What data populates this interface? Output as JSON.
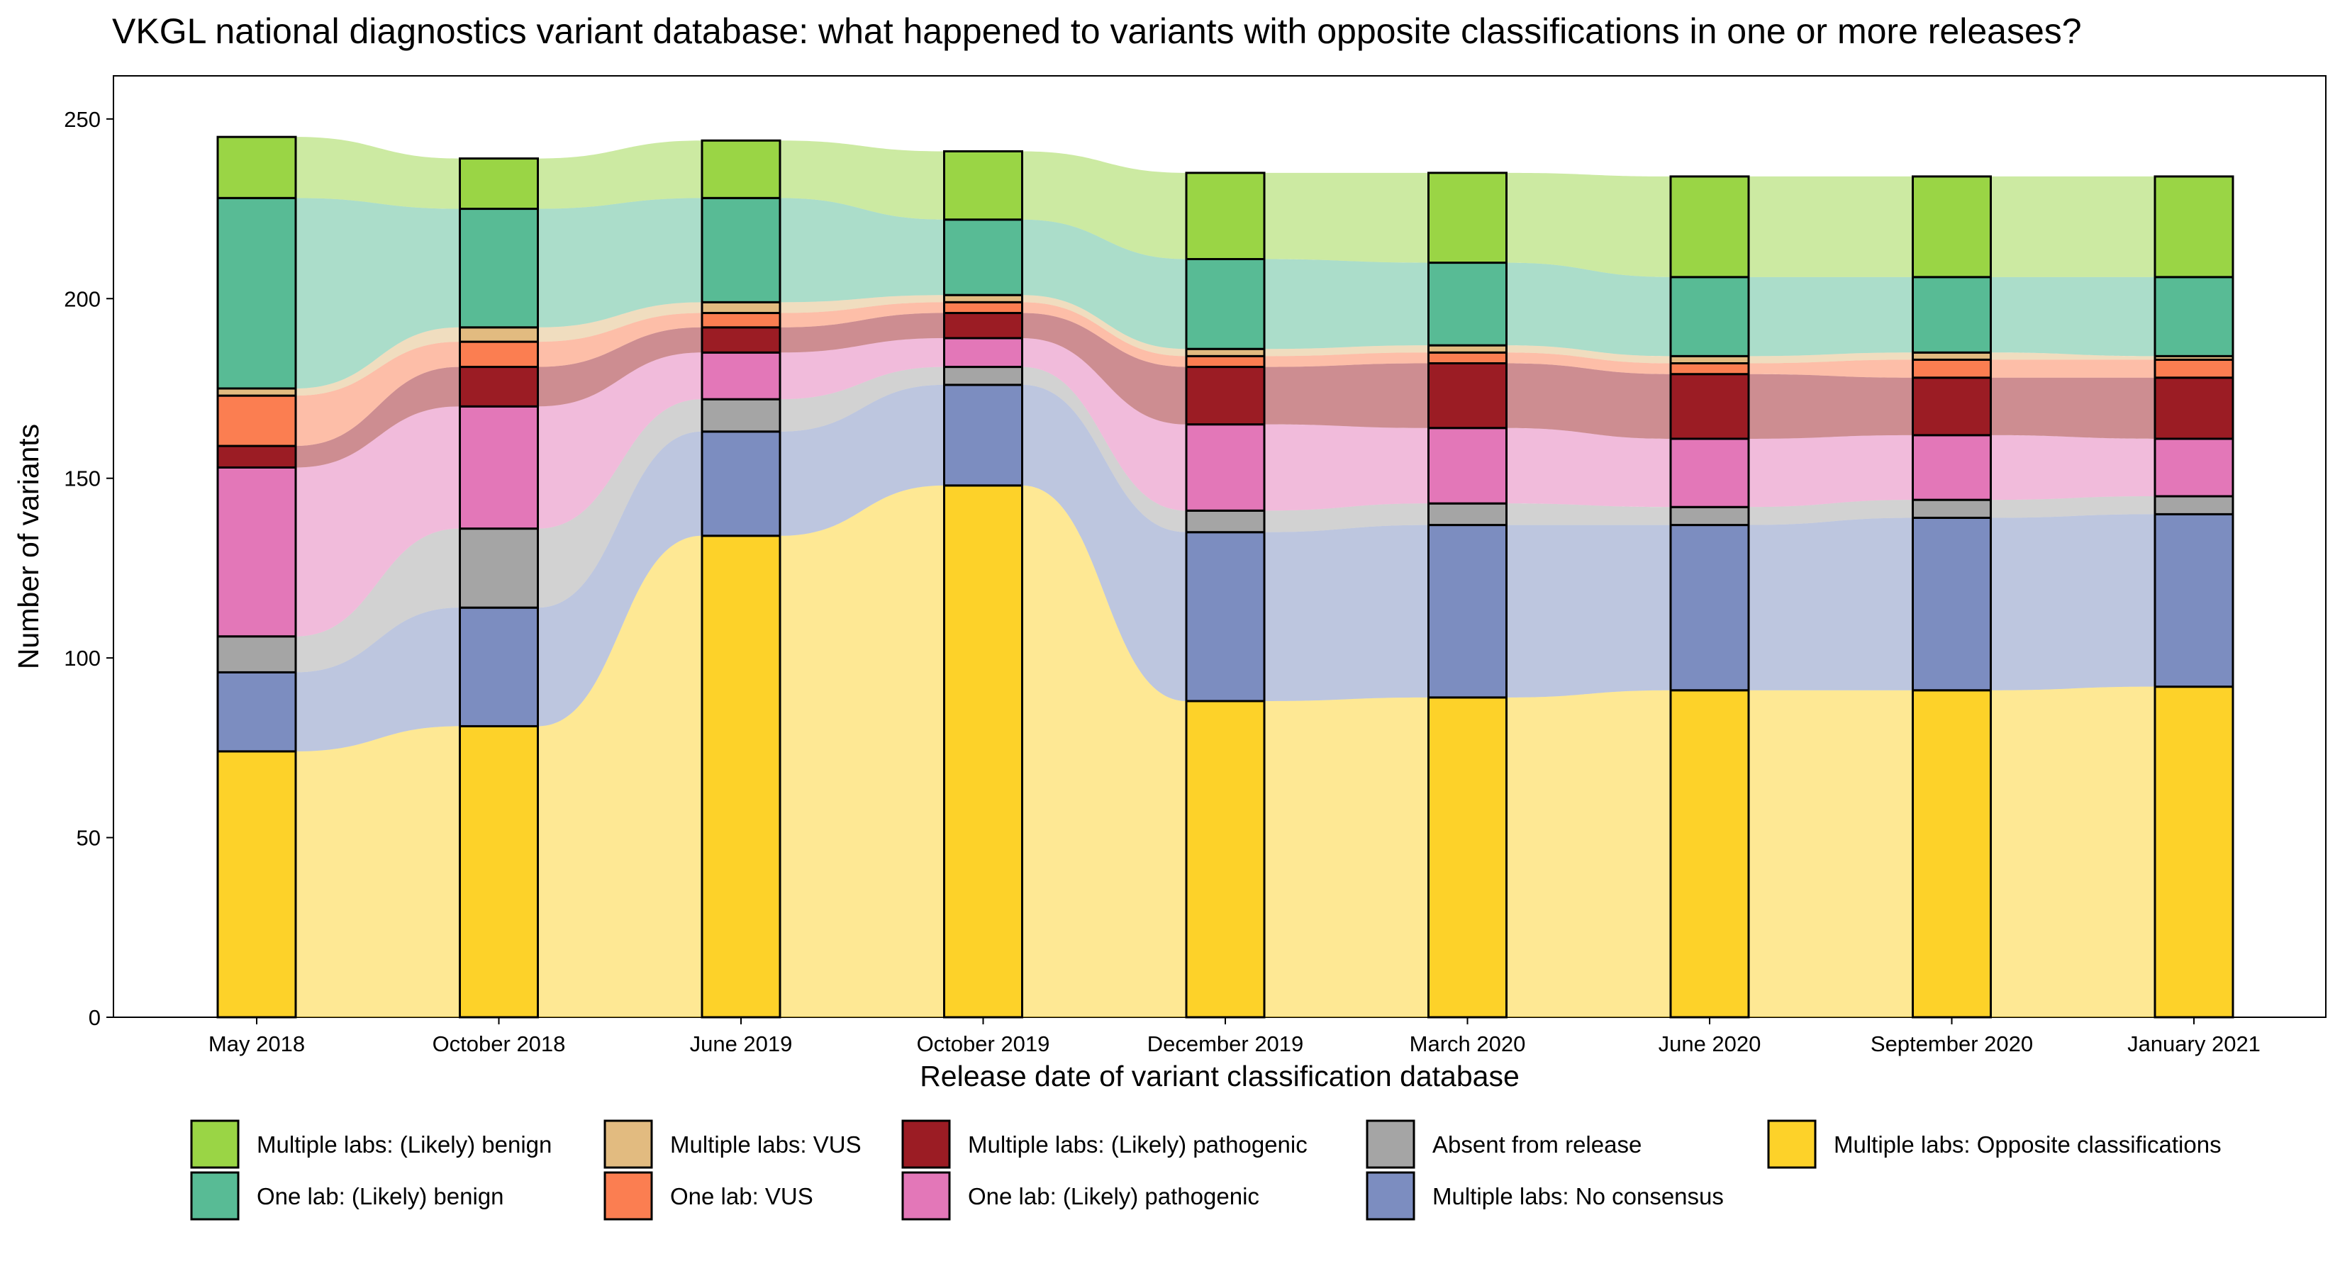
{
  "chart_data": {
    "type": "bar",
    "subtype": "stacked alluvial",
    "title": "VKGL national diagnostics variant database: what happened to variants with opposite classifications in one or more releases?",
    "xlabel": "Release date of variant classification database",
    "ylabel": "Number of variants",
    "ylim": [
      0,
      262
    ],
    "yticks": [
      0,
      50,
      100,
      150,
      200,
      250
    ],
    "grid": false,
    "legend_position": "bottom",
    "categories": [
      "May 2018",
      "October 2018",
      "June 2019",
      "October 2019",
      "December 2019",
      "March 2020",
      "June 2020",
      "September 2020",
      "January 2021"
    ],
    "series": [
      {
        "name": "Multiple labs: Opposite classifications",
        "color": "#fdd229",
        "values": [
          74,
          81,
          134,
          148,
          88,
          89,
          91,
          91,
          92
        ]
      },
      {
        "name": "Multiple labs: No consensus",
        "color": "#7c8dc0",
        "values": [
          22,
          33,
          29,
          28,
          47,
          48,
          46,
          48,
          48
        ]
      },
      {
        "name": "Absent from release",
        "color": "#a5a5a5",
        "values": [
          10,
          22,
          9,
          5,
          6,
          6,
          5,
          5,
          5
        ]
      },
      {
        "name": "One lab: (Likely) pathogenic",
        "color": "#e377b8",
        "values": [
          47,
          34,
          13,
          8,
          24,
          21,
          19,
          18,
          16
        ]
      },
      {
        "name": "Multiple labs: (Likely) pathogenic",
        "color": "#9b1c24",
        "values": [
          6,
          11,
          7,
          7,
          16,
          18,
          18,
          16,
          17
        ]
      },
      {
        "name": "One lab: VUS",
        "color": "#fb7e51",
        "values": [
          14,
          7,
          4,
          3,
          3,
          3,
          3,
          5,
          5
        ]
      },
      {
        "name": "Multiple labs: VUS",
        "color": "#e2bb80",
        "values": [
          2,
          4,
          3,
          2,
          2,
          2,
          2,
          2,
          1
        ]
      },
      {
        "name": "One lab: (Likely) benign",
        "color": "#58bb95",
        "values": [
          53,
          33,
          29,
          21,
          25,
          23,
          22,
          21,
          22
        ]
      },
      {
        "name": "Multiple labs: (Likely) benign",
        "color": "#9ad545",
        "values": [
          17,
          14,
          16,
          19,
          24,
          25,
          28,
          28,
          28
        ]
      }
    ],
    "legend": [
      {
        "name": "Multiple labs: (Likely) benign",
        "color": "#9ad545"
      },
      {
        "name": "One lab: (Likely) benign",
        "color": "#58bb95"
      },
      {
        "name": "Multiple labs: VUS",
        "color": "#e2bb80"
      },
      {
        "name": "One lab: VUS",
        "color": "#fb7e51"
      },
      {
        "name": "Multiple labs: (Likely) pathogenic",
        "color": "#9b1c24"
      },
      {
        "name": "One lab: (Likely) pathogenic",
        "color": "#e377b8"
      },
      {
        "name": "Absent from release",
        "color": "#a5a5a5"
      },
      {
        "name": "Multiple labs: No consensus",
        "color": "#7c8dc0"
      },
      {
        "name": "Multiple labs: Opposite classifications",
        "color": "#fdd229"
      }
    ]
  }
}
